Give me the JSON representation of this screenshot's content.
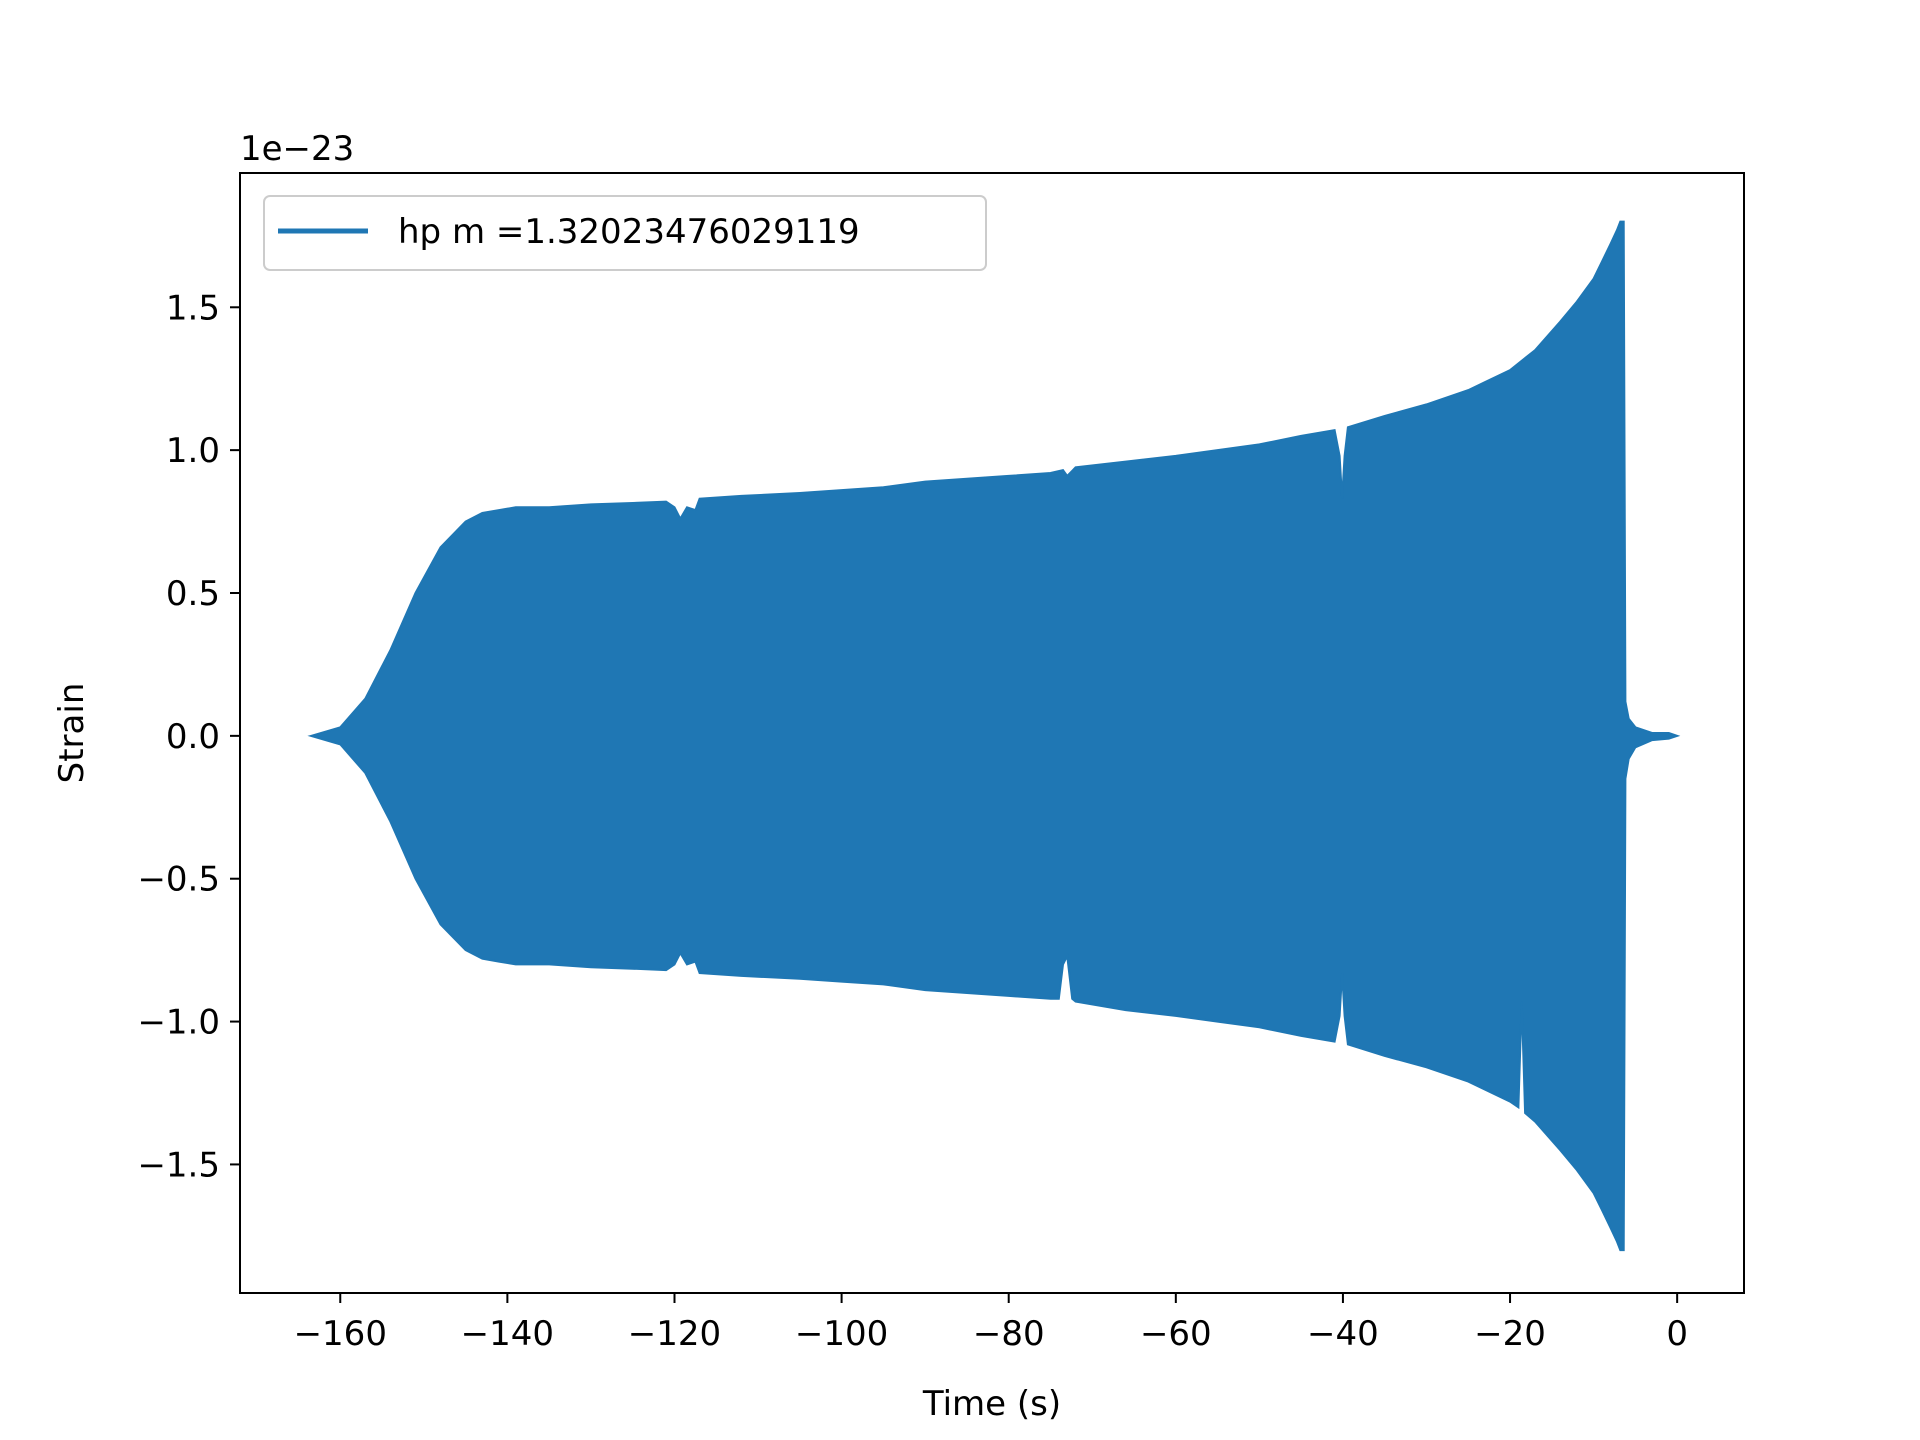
{
  "chart_data": {
    "type": "line",
    "xlabel": "Time (s)",
    "ylabel": "Strain",
    "offset_label": "1e−23",
    "xlim": [
      -172,
      8
    ],
    "ylim": [
      -1.95,
      1.97
    ],
    "x_ticks": [
      -160,
      -140,
      -120,
      -100,
      -80,
      -60,
      -40,
      -20,
      0
    ],
    "x_tick_labels": [
      "−160",
      "−140",
      "−120",
      "−100",
      "−80",
      "−60",
      "−40",
      "−20",
      "0"
    ],
    "y_ticks": [
      -1.5,
      -1.0,
      -0.5,
      0.0,
      0.5,
      1.0,
      1.5
    ],
    "y_tick_labels": [
      "−1.5",
      "−1.0",
      "−0.5",
      "0.0",
      "0.5",
      "1.0",
      "1.5"
    ],
    "grid": false,
    "legend_position": "top-left",
    "series": [
      {
        "name": "hp m =1.32023476029119",
        "color": "#1f77b4",
        "upper_envelope": {
          "x": [
            -163.5,
            -160,
            -157,
            -154,
            -151,
            -148,
            -145,
            -143,
            -141,
            -139,
            -135,
            -130,
            -125,
            -121,
            -120,
            -119.3,
            -118.5,
            -117.5,
            -117,
            -112,
            -105,
            -100,
            -95,
            -90,
            -85,
            -80,
            -75,
            -73.5,
            -73,
            -72.3,
            -72,
            -66,
            -60,
            -55,
            -50,
            -45,
            -41,
            -40.4,
            -40.1,
            -39.8,
            -39.4,
            -35,
            -30,
            -25,
            -20,
            -17,
            -14,
            -12,
            -10,
            -9,
            -8,
            -7.2,
            -6.8,
            -6.4,
            -6.2,
            -5.8,
            -5,
            -3,
            -1,
            0
          ],
          "y": [
            0.0,
            0.03,
            0.13,
            0.3,
            0.5,
            0.66,
            0.75,
            0.78,
            0.79,
            0.8,
            0.8,
            0.81,
            0.815,
            0.82,
            0.8,
            0.76,
            0.8,
            0.79,
            0.83,
            0.84,
            0.85,
            0.86,
            0.87,
            0.89,
            0.9,
            0.91,
            0.92,
            0.93,
            0.91,
            0.93,
            0.94,
            0.96,
            0.98,
            1.0,
            1.02,
            1.05,
            1.07,
            0.98,
            0.83,
            0.98,
            1.08,
            1.12,
            1.16,
            1.21,
            1.28,
            1.35,
            1.45,
            1.52,
            1.6,
            1.66,
            1.72,
            1.77,
            1.8,
            1.8,
            0.12,
            0.06,
            0.03,
            0.01,
            0.01,
            0.0
          ]
        },
        "lower_envelope": {
          "x": [
            -163.5,
            -160,
            -157,
            -154,
            -151,
            -148,
            -145,
            -143,
            -141,
            -139,
            -135,
            -130,
            -125,
            -121,
            -120,
            -119.3,
            -118.5,
            -117.5,
            -117,
            -112,
            -105,
            -100,
            -95,
            -90,
            -85,
            -80,
            -75,
            -74,
            -73.5,
            -73,
            -72.4,
            -72,
            -66,
            -60,
            -55,
            -50,
            -45,
            -41,
            -40.4,
            -40.1,
            -39.8,
            -39.4,
            -35,
            -30,
            -25,
            -20,
            -19,
            -18.6,
            -18.2,
            -17,
            -14,
            -12,
            -10,
            -9,
            -8,
            -7.2,
            -6.8,
            -6.4,
            -6.2,
            -5.8,
            -5,
            -3,
            -1,
            0
          ],
          "y": [
            0.0,
            -0.03,
            -0.13,
            -0.3,
            -0.5,
            -0.66,
            -0.75,
            -0.78,
            -0.79,
            -0.8,
            -0.8,
            -0.81,
            -0.815,
            -0.82,
            -0.8,
            -0.76,
            -0.8,
            -0.79,
            -0.83,
            -0.84,
            -0.85,
            -0.86,
            -0.87,
            -0.89,
            -0.9,
            -0.91,
            -0.92,
            -0.92,
            -0.8,
            -0.77,
            -0.92,
            -0.93,
            -0.96,
            -0.98,
            -1.0,
            -1.02,
            -1.05,
            -1.07,
            -0.98,
            -0.83,
            -0.98,
            -1.08,
            -1.12,
            -1.16,
            -1.21,
            -1.28,
            -1.3,
            -0.93,
            -1.32,
            -1.35,
            -1.45,
            -1.52,
            -1.6,
            -1.66,
            -1.72,
            -1.77,
            -1.8,
            -1.8,
            -0.15,
            -0.08,
            -0.04,
            -0.015,
            -0.01,
            0.0
          ]
        }
      }
    ]
  }
}
